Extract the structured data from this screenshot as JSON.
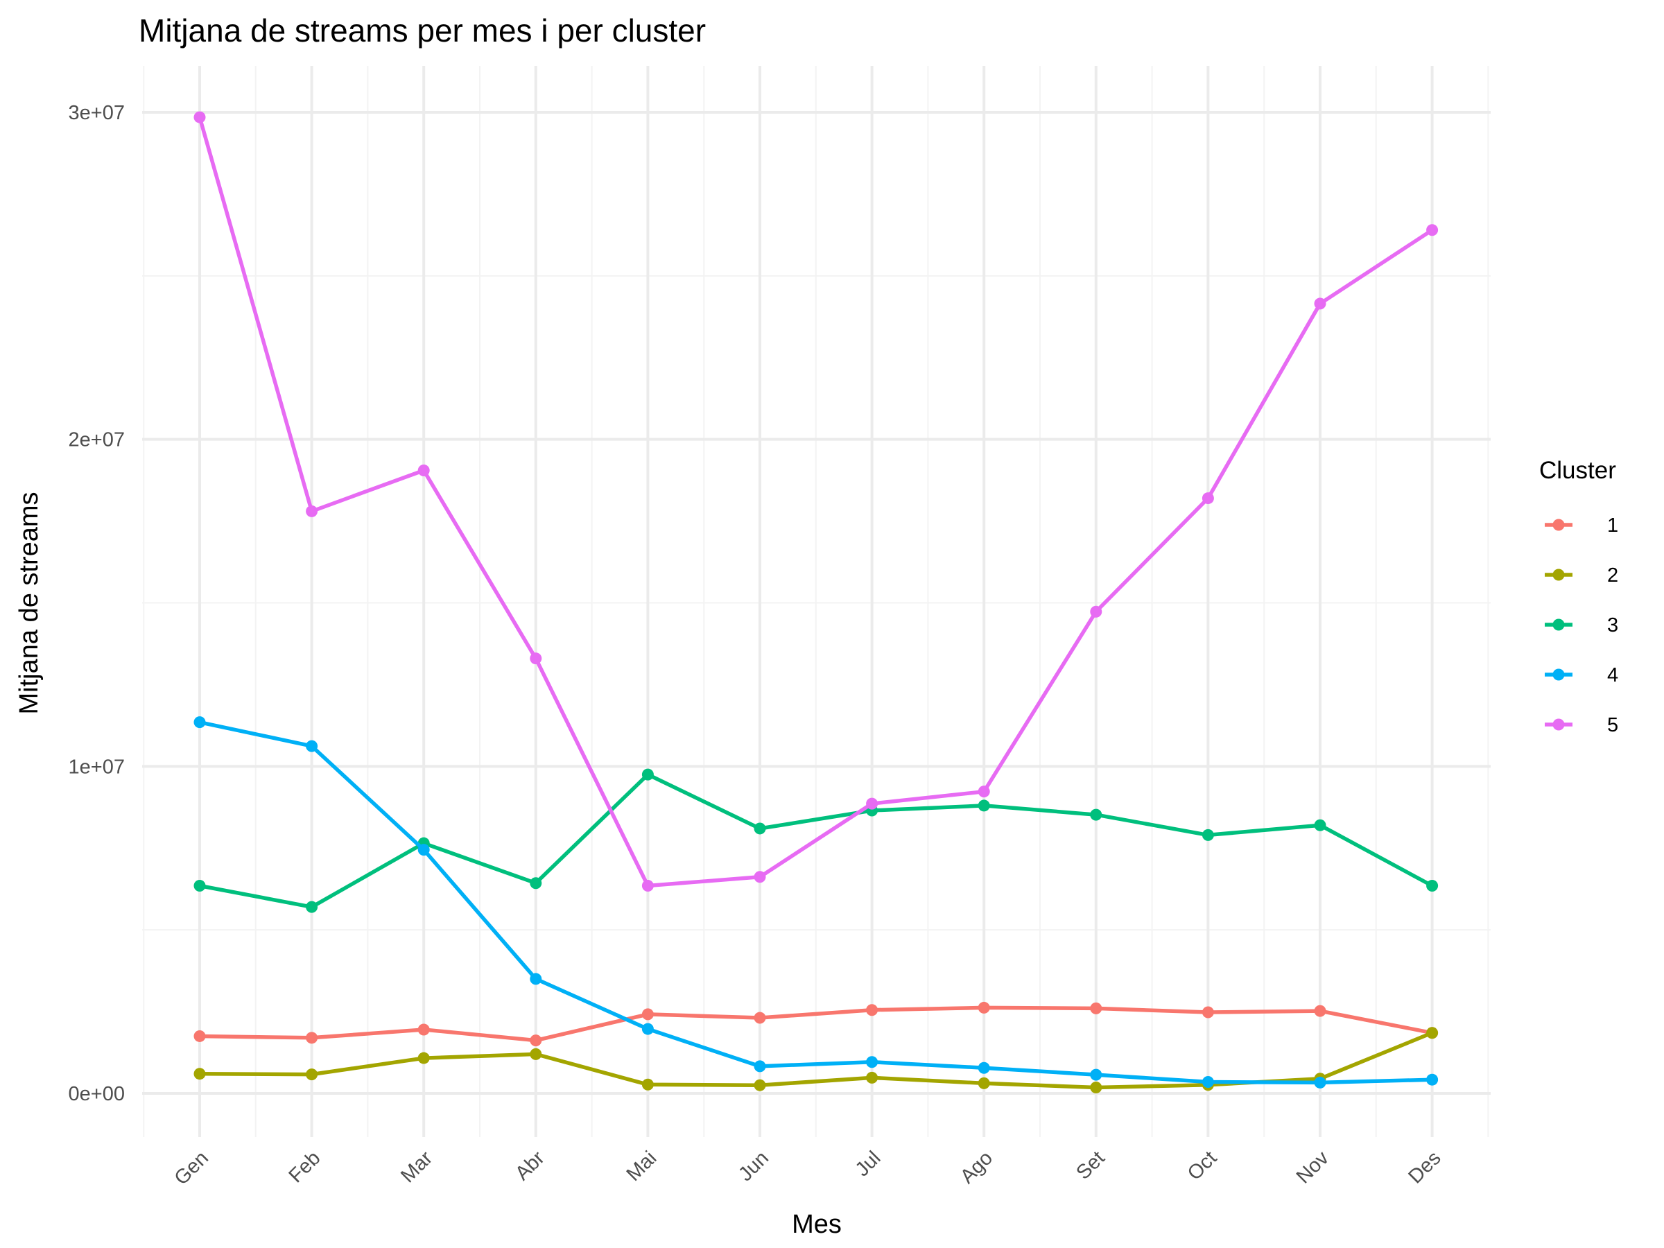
{
  "chart_data": {
    "type": "line",
    "title": "Mitjana de streams per mes i per cluster",
    "xlabel": "Mes",
    "ylabel": "Mitjana de streams",
    "categories": [
      "Gen",
      "Feb",
      "Mar",
      "Abr",
      "Mai",
      "Jun",
      "Jul",
      "Ago",
      "Set",
      "Oct",
      "Nov",
      "Des"
    ],
    "y_ticks": [
      0,
      10000000,
      20000000,
      30000000
    ],
    "y_tick_labels": [
      "0e+00",
      "1e+07",
      "2e+07",
      "3e+07"
    ],
    "ylim": [
      -1200000,
      31400000
    ],
    "grid": true,
    "legend": {
      "title": "Cluster",
      "position": "right"
    },
    "series": [
      {
        "name": "1",
        "color": "#F8766D",
        "values": [
          1750000,
          1700000,
          1950000,
          1620000,
          2420000,
          2310000,
          2550000,
          2620000,
          2600000,
          2480000,
          2520000,
          1850000
        ]
      },
      {
        "name": "2",
        "color": "#A3A500",
        "values": [
          600000,
          580000,
          1080000,
          1200000,
          270000,
          250000,
          480000,
          310000,
          180000,
          260000,
          450000,
          1850000
        ]
      },
      {
        "name": "3",
        "color": "#00BF7D",
        "values": [
          6350000,
          5700000,
          7650000,
          6430000,
          9750000,
          8100000,
          8650000,
          8800000,
          8520000,
          7900000,
          8200000,
          6350000
        ]
      },
      {
        "name": "4",
        "color": "#00B0F6",
        "values": [
          11350000,
          10620000,
          7450000,
          3500000,
          1970000,
          830000,
          960000,
          780000,
          570000,
          350000,
          330000,
          420000
        ]
      },
      {
        "name": "5",
        "color": "#E76BF3",
        "values": [
          29850000,
          17800000,
          19050000,
          13300000,
          6350000,
          6620000,
          8860000,
          9230000,
          14730000,
          18200000,
          24150000,
          26400000
        ]
      }
    ]
  }
}
